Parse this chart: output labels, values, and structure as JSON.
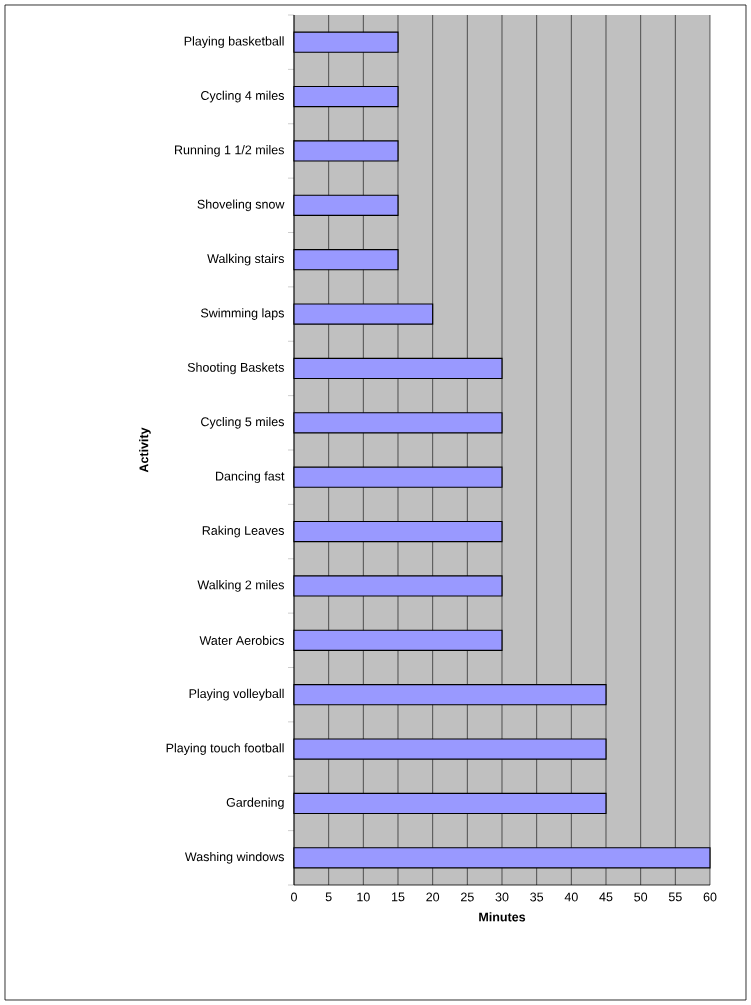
{
  "chart_data": {
    "type": "bar",
    "orientation": "horizontal",
    "categories": [
      "Playing basketball",
      "Cycling 4 miles",
      "Running 1 1/2 miles",
      "Shoveling snow",
      "Walking stairs",
      "Swimming laps",
      "Shooting Baskets",
      "Cycling 5 miles",
      "Dancing fast",
      "Raking Leaves",
      "Walking 2 miles",
      "Water Aerobics",
      "Playing volleyball",
      "Playing touch football",
      "Gardening",
      "Washing windows"
    ],
    "values": [
      15,
      15,
      15,
      15,
      15,
      20,
      30,
      30,
      30,
      30,
      30,
      30,
      45,
      45,
      45,
      60
    ],
    "color": "#9999ff",
    "xlim": [
      0,
      60
    ],
    "xticks": [
      0,
      5,
      10,
      15,
      20,
      25,
      30,
      35,
      40,
      45,
      50,
      55,
      60
    ],
    "xlabel": "Minutes",
    "ylabel": "Activity",
    "grid": "x"
  }
}
